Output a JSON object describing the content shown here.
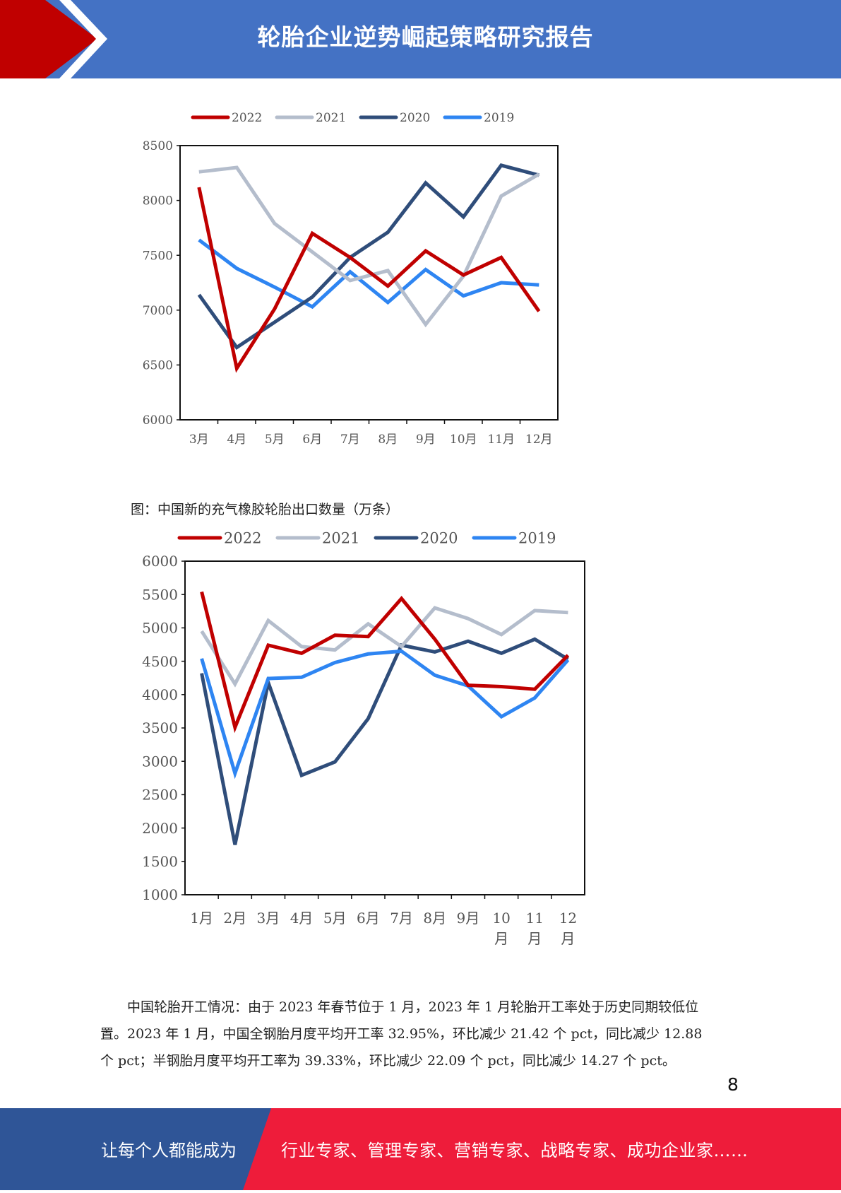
{
  "header": {
    "title": "轮胎企业逆势崛起策略研究报告"
  },
  "colors": {
    "c2022": "#c00000",
    "c2021": "#b4bdcc",
    "c2020": "#2f4d7a",
    "c2019": "#2e85f2"
  },
  "chart_data": [
    {
      "type": "line",
      "title": "",
      "categories": [
        "3月",
        "4月",
        "5月",
        "6月",
        "7月",
        "8月",
        "9月",
        "10月",
        "11月",
        "12月"
      ],
      "ylim": [
        6000,
        8500
      ],
      "yticks": [
        "8500",
        "8000",
        "7500",
        "7000",
        "6500",
        "6000"
      ],
      "legend_position": "top",
      "grid": false,
      "series": [
        {
          "name": "2022",
          "values": [
            8120,
            6470,
            7010,
            7700,
            7480,
            7220,
            7540,
            7320,
            7480,
            6990
          ]
        },
        {
          "name": "2021",
          "values": [
            8260,
            8300,
            7790,
            7530,
            7270,
            7360,
            6870,
            7310,
            8040,
            8240
          ]
        },
        {
          "name": "2020",
          "values": [
            7140,
            6660,
            6890,
            7120,
            7480,
            7710,
            8160,
            7850,
            8320,
            8230
          ]
        },
        {
          "name": "2019",
          "values": [
            7640,
            7380,
            7210,
            7030,
            7350,
            7070,
            7370,
            7130,
            7250,
            7230
          ]
        }
      ]
    },
    {
      "type": "line",
      "title": "图：中国新的充气橡胶轮胎出口数量（万条）",
      "categories": [
        "1月",
        "2月",
        "3月",
        "4月",
        "5月",
        "6月",
        "7月",
        "8月",
        "9月",
        "10月",
        "11月",
        "12月"
      ],
      "ylim": [
        1000,
        6000
      ],
      "yticks": [
        "6000",
        "5500",
        "5000",
        "4500",
        "4000",
        "3500",
        "3000",
        "2500",
        "2000",
        "1500",
        "1000"
      ],
      "legend_position": "top",
      "grid": false,
      "series": [
        {
          "name": "2022",
          "values": [
            5540,
            3510,
            4740,
            4620,
            4890,
            4870,
            5440,
            4830,
            4140,
            4120,
            4080,
            4590
          ]
        },
        {
          "name": "2021",
          "values": [
            4950,
            4160,
            5110,
            4720,
            4670,
            5060,
            4720,
            5300,
            5140,
            4900,
            5260,
            5230
          ]
        },
        {
          "name": "2020",
          "values": [
            4320,
            1750,
            4180,
            2790,
            2990,
            3640,
            4740,
            4640,
            4800,
            4620,
            4830,
            4530
          ]
        },
        {
          "name": "2019",
          "values": [
            4540,
            2820,
            4240,
            4260,
            4480,
            4610,
            4650,
            4290,
            4130,
            3670,
            3950,
            4520
          ]
        }
      ]
    }
  ],
  "paragraph": {
    "lines": [
      "　　中国轮胎开工情况：由于 2023 年春节位于 1 月，2023 年 1 月轮胎开工率处于历史同期较低位",
      "置。2023 年 1 月，中国全钢胎月度平均开工率 32.95%，环比减少 21.42 个 pct，同比减少 12.88",
      "个 pct；半钢胎月度平均开工率为 39.33%，环比减少 22.09 个 pct，同比减少 14.27 个 pct。"
    ]
  },
  "page_number": "8",
  "footer": {
    "left_text": "让每个人都能成为",
    "right_text": "行业专家、管理专家、营销专家、战略专家、成功企业家……"
  }
}
